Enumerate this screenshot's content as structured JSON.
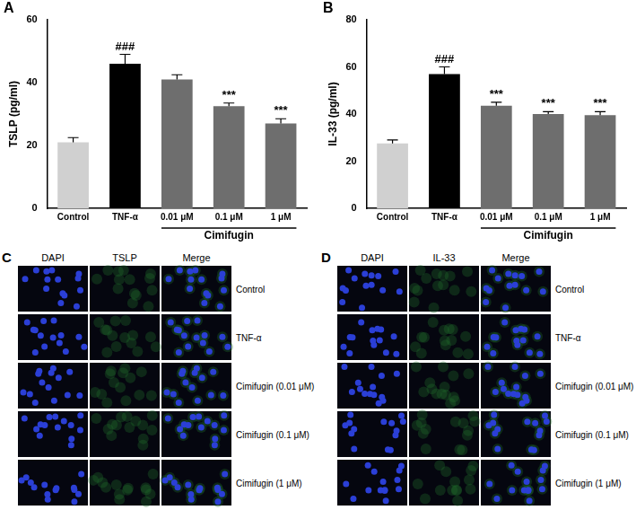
{
  "chart_data": [
    {
      "type": "bar",
      "panel_label": "A",
      "y_label": "TSLP (pg/ml)",
      "categories": [
        "Control",
        "TNF-α",
        "0.01 μM",
        "0.1 μM",
        "1 μM"
      ],
      "values": [
        21,
        46,
        41,
        32.5,
        27
      ],
      "errors": [
        1.5,
        3,
        1.5,
        1,
        1.5
      ],
      "colors": [
        "#d0d0d0",
        "#000000",
        "#6e6e6e",
        "#6e6e6e",
        "#6e6e6e"
      ],
      "annotations": [
        {
          "category": "TNF-α",
          "text": "###"
        },
        {
          "category": "0.1 μM",
          "text": "***"
        },
        {
          "category": "1 μM",
          "text": "***"
        }
      ],
      "group": {
        "label": "Cimifugin",
        "categories": [
          "0.01 μM",
          "0.1 μM",
          "1 μM"
        ]
      },
      "ylim": [
        0,
        60
      ],
      "yticks": [
        0,
        20,
        40,
        60
      ],
      "grid": false
    },
    {
      "type": "bar",
      "panel_label": "B",
      "y_label": "IL-33 (pg/ml)",
      "categories": [
        "Control",
        "TNF-α",
        "0.01 μM",
        "0.1 μM",
        "1 μM"
      ],
      "values": [
        27.5,
        57,
        43.5,
        40,
        39.5
      ],
      "errors": [
        1.5,
        3,
        1.5,
        1,
        1.5
      ],
      "colors": [
        "#d0d0d0",
        "#000000",
        "#6e6e6e",
        "#6e6e6e",
        "#6e6e6e"
      ],
      "annotations": [
        {
          "category": "TNF-α",
          "text": "###"
        },
        {
          "category": "0.01 μM",
          "text": "***"
        },
        {
          "category": "0.1 μM",
          "text": "***"
        },
        {
          "category": "1 μM",
          "text": "***"
        }
      ],
      "group": {
        "label": "Cimifugin",
        "categories": [
          "0.01 μM",
          "0.1 μM",
          "1 μM"
        ]
      },
      "ylim": [
        0,
        80
      ],
      "yticks": [
        0,
        20,
        40,
        60,
        80
      ],
      "grid": false
    }
  ],
  "image_panels": [
    {
      "panel_label": "C",
      "columns": [
        "DAPI",
        "TSLP",
        "Merge"
      ],
      "rows": [
        "Control",
        "TNF-α",
        "Cimifugin (0.01 μM)",
        "Cimifugin (0.1 μM)",
        "Cimifugin (1 μM)"
      ]
    },
    {
      "panel_label": "D",
      "columns": [
        "DAPI",
        "IL-33",
        "Merge"
      ],
      "rows": [
        "Control",
        "TNF-α",
        "Cimifugin (0.01 μM)",
        "Cimifugin (0.1 μM)",
        "Cimifugin (1 μM)"
      ]
    }
  ]
}
